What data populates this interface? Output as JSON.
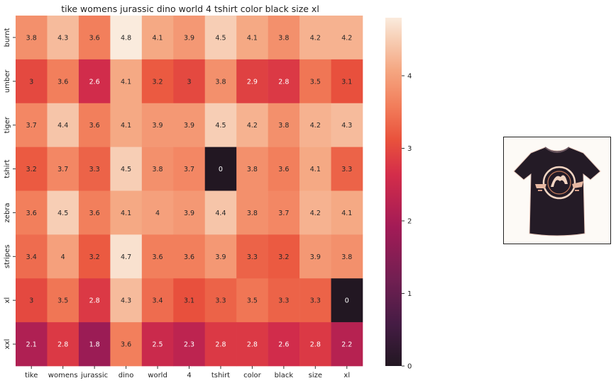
{
  "chart_data": {
    "type": "heatmap",
    "title": "tike womens jurassic dino world 4 tshirt color black size xl",
    "columns": [
      "tike",
      "womens",
      "jurassic",
      "dino",
      "world",
      "4",
      "tshirt",
      "color",
      "black",
      "size",
      "xl"
    ],
    "rows": [
      "burnt",
      "umber",
      "tiger",
      "tshirt",
      "zebra",
      "stripes",
      "xl",
      "xxl"
    ],
    "values": [
      [
        3.8,
        4.3,
        3.6,
        4.8,
        4.1,
        3.9,
        4.5,
        4.1,
        3.8,
        4.2,
        4.2
      ],
      [
        3,
        3.6,
        2.6,
        4.1,
        3.2,
        3,
        3.8,
        2.9,
        2.8,
        3.5,
        3.1
      ],
      [
        3.7,
        4.4,
        3.6,
        4.1,
        3.9,
        3.9,
        4.5,
        4.2,
        3.8,
        4.2,
        4.3
      ],
      [
        3.2,
        3.7,
        3.3,
        4.5,
        3.8,
        3.7,
        0,
        3.8,
        3.6,
        4.1,
        3.3
      ],
      [
        3.6,
        4.5,
        3.6,
        4.1,
        4,
        3.9,
        4.4,
        3.8,
        3.7,
        4.2,
        4.1
      ],
      [
        3.4,
        4,
        3.2,
        4.7,
        3.6,
        3.6,
        3.9,
        3.3,
        3.2,
        3.9,
        3.8
      ],
      [
        3,
        3.5,
        2.8,
        4.3,
        3.4,
        3.1,
        3.3,
        3.5,
        3.3,
        3.3,
        0
      ],
      [
        2.1,
        2.8,
        1.8,
        3.6,
        2.5,
        2.3,
        2.8,
        2.8,
        2.6,
        2.8,
        2.2
      ]
    ],
    "colorbar": {
      "ticks": [
        "0",
        "1",
        "2",
        "3",
        "4"
      ],
      "vmin": 0,
      "vmax": 4.8,
      "colormap": "rocket"
    },
    "grid": false
  },
  "thumbnail": {
    "icon": "tshirt-icon",
    "shirt_color": "#241b26"
  }
}
